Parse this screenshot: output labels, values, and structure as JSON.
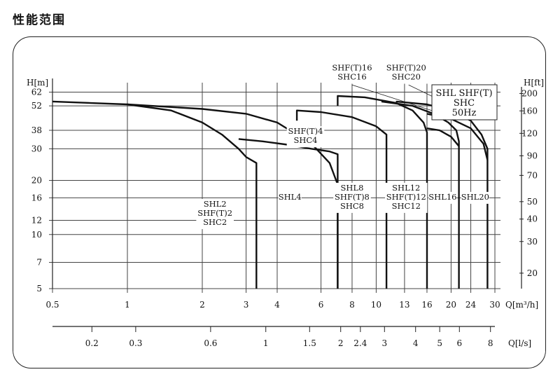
{
  "page": {
    "title": "性能范围"
  },
  "chart_data": {
    "type": "line",
    "title": "",
    "legend_box": [
      "SHL SHF(T)",
      "SHC",
      "50Hz"
    ],
    "x_axis": {
      "scale": "log",
      "label": "Q[m³/h]",
      "range": [
        0.5,
        30
      ],
      "ticks": [
        0.5,
        1,
        2,
        3,
        4,
        6,
        8,
        10,
        13,
        16,
        20,
        24,
        30
      ],
      "tick_labels": [
        "0.5",
        "1",
        "2",
        "3",
        "4",
        "6",
        "8",
        "10",
        "13",
        "16",
        "20",
        "24",
        "30"
      ],
      "grid": [
        0.5,
        1,
        2,
        3,
        4,
        6,
        8,
        10,
        13,
        16,
        20,
        24,
        30
      ]
    },
    "x2_axis": {
      "scale": "log",
      "label": "Q[l/s]",
      "ticks": [
        0.2,
        0.3,
        0.6,
        1,
        1.5,
        2,
        2.4,
        3,
        4,
        5,
        6,
        8
      ],
      "tick_labels": [
        "0.2",
        "0.3",
        "0.6",
        "1",
        "1.5",
        "2",
        "2.4",
        "3",
        "4",
        "5",
        "6",
        "8"
      ]
    },
    "y_axis": {
      "scale": "log",
      "label": "H[m]",
      "range": [
        5,
        70
      ],
      "ticks": [
        5,
        7,
        10,
        12,
        16,
        20,
        30,
        38,
        52,
        62
      ],
      "tick_labels": [
        "5",
        "7",
        "10",
        "12",
        "16",
        "20",
        "30",
        "38",
        "52",
        "62"
      ],
      "grid": [
        5,
        7,
        10,
        12,
        16,
        20,
        30,
        38,
        52,
        62
      ]
    },
    "y2_axis": {
      "scale": "log",
      "label": "H[ft]",
      "ticks": [
        20,
        30,
        40,
        50,
        70,
        90,
        120,
        160,
        200
      ],
      "tick_labels": [
        "20",
        "30",
        "40",
        "50",
        "70",
        "90",
        "120",
        "160",
        "200"
      ]
    },
    "series": [
      {
        "name": "SHL2 / SHF(T)2 / SHC2",
        "x": [
          0.5,
          1.0,
          1.5,
          2.0,
          2.4,
          2.8,
          3.0,
          3.3,
          3.3
        ],
        "y": [
          55,
          53,
          49,
          42,
          36,
          30,
          27,
          25,
          5
        ]
      },
      {
        "name": "SHL4 / SHF(T)4 / SHC4",
        "x": [
          1.0,
          2.0,
          3.0,
          4.0,
          4.5,
          5.5,
          6.5,
          7.0,
          7.0
        ],
        "y": [
          53,
          50,
          47,
          42,
          38,
          32,
          25,
          19,
          5
        ]
      },
      {
        "name": "SHL4 / SHF(T)4 / SHC4 (short)",
        "x": [
          2.8,
          3.5,
          4.5,
          5.5,
          6.5,
          7.0,
          7.0
        ],
        "y": [
          34,
          33,
          31.5,
          30,
          29,
          28,
          5
        ]
      },
      {
        "name": "SHL8 / SHF(T)8 / SHC8",
        "x": [
          4.8,
          4.8,
          6.0,
          8.0,
          10.0,
          11.0,
          11.0
        ],
        "y": [
          43,
          49,
          48,
          45,
          40,
          36,
          5
        ]
      },
      {
        "name": "SHL12 / SHF(T)12 / SHC12",
        "x": [
          7.0,
          7.0,
          9.0,
          12.0,
          14.0,
          15.5,
          16.0,
          16.0
        ],
        "y": [
          52,
          59,
          58,
          54,
          49,
          42,
          37,
          5
        ]
      },
      {
        "name": "SHL16",
        "x": [
          10.5,
          14.0,
          17.0,
          19.5,
          21.0,
          21.5,
          21.5
        ],
        "y": [
          55,
          52,
          47,
          42,
          38,
          33,
          5
        ]
      },
      {
        "name": "SHL16 (short)",
        "x": [
          16.0,
          18.0,
          20.0,
          21.5
        ],
        "y": [
          39,
          38,
          35,
          31
        ]
      },
      {
        "name": "SHL20",
        "x": [
          12.0,
          16.0,
          20.0,
          24.0,
          26.5,
          28.0,
          28.0
        ],
        "y": [
          55,
          53,
          49,
          43,
          36,
          30,
          5
        ]
      },
      {
        "name": "SHL20 (short)",
        "x": [
          16.0,
          20.0,
          24.0,
          27.0,
          28.0
        ],
        "y": [
          47,
          44,
          39,
          32,
          26
        ]
      }
    ],
    "annotations": [
      {
        "lines": [
          "SHL2",
          "SHF(T)2",
          "SHC2"
        ],
        "x": 2.25,
        "y": 13
      },
      {
        "lines": [
          "SHL4"
        ],
        "x": 4.5,
        "y": 16
      },
      {
        "lines": [
          "SHF(T)4",
          "SHC4"
        ],
        "x": 5.2,
        "y": 35
      },
      {
        "lines": [
          "SHL8",
          "SHF(T)8",
          "SHC8"
        ],
        "x": 8.0,
        "y": 16
      },
      {
        "lines": [
          "SHL12",
          "SHF(T)12",
          "SHC12"
        ],
        "x": 13.2,
        "y": 16
      },
      {
        "lines": [
          "SHL16"
        ],
        "x": 18.5,
        "y": 16
      },
      {
        "lines": [
          "SHL20"
        ],
        "x": 25.0,
        "y": 16
      },
      {
        "lines": [
          "SHF(T)16",
          "SHC16"
        ],
        "x": 8.0,
        "y": 79
      },
      {
        "lines": [
          "SHF(T)20",
          "SHC20"
        ],
        "x": 13.2,
        "y": 79
      }
    ],
    "leaders": [
      {
        "from": [
          8.0,
          68
        ],
        "to": [
          17.5,
          48
        ]
      },
      {
        "from": [
          13.5,
          68
        ],
        "to": [
          22.0,
          49
        ]
      }
    ]
  }
}
